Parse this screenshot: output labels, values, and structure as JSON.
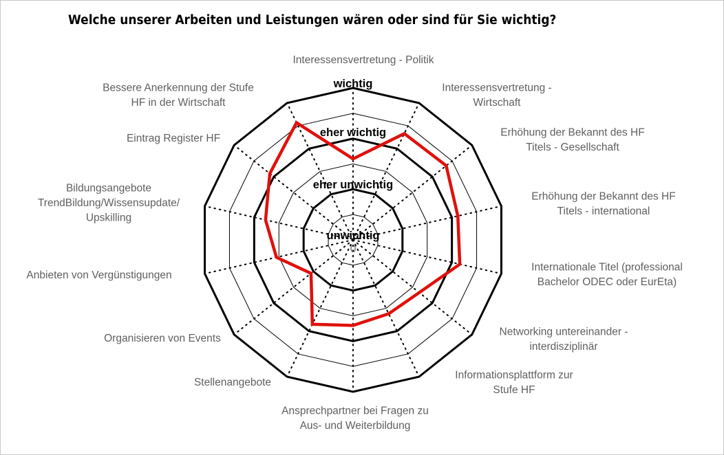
{
  "chart_data": {
    "type": "radar",
    "title": "Welche unserer Arbeiten und Leistungen wären oder sind für Sie wichtig?",
    "categories": [
      [
        "Interessensvertretung - Politik"
      ],
      [
        "Interessensvertretung -",
        "Wirtschaft"
      ],
      [
        "Erhöhung der Bekannt des HF",
        "Titels - Gesellschaft"
      ],
      [
        "Erhöhung der Bekannt des HF",
        "Titels - international"
      ],
      [
        "Internationale Titel (professional",
        "Bachelor ODEC oder EurEta)"
      ],
      [
        "Networking untereinander -",
        "interdisziplinär"
      ],
      [
        "Informationsplattform zur",
        "Stufe HF"
      ],
      [
        "Ansprechpartner bei Fragen zu",
        "Aus- und Weiterbildung"
      ],
      [
        "Stellenangebote"
      ],
      [
        "Organisieren von Events"
      ],
      [
        "Anbieten von Vergünstigungen"
      ],
      [
        "Bildungsangebote",
        "TrendBildung/Wissensupdate/",
        "Upskilling"
      ],
      [
        "Eintrag Register HF"
      ],
      [
        "Bessere Anerkennung der Stufe",
        "HF in der Wirtschaft"
      ]
    ],
    "values": [
      2.6,
      3.33,
      3.35,
      3.12,
      3.16,
      2.67,
      2.62,
      2.69,
      2.85,
      2.06,
      2.55,
      2.77,
      3.1,
      3.57
    ],
    "range": [
      1,
      4
    ],
    "gridlines": [
      1.5,
      2,
      2.5,
      3,
      3.5,
      4
    ],
    "tick_labels": [
      {
        "value": 1,
        "label": "unwichtig"
      },
      {
        "value": 2,
        "label": "eher unwichtig"
      },
      {
        "value": 3,
        "label": "eher wichtig"
      },
      {
        "value": 4,
        "label": "wichtig"
      }
    ],
    "center_label": "0",
    "series_color": "#e0100c",
    "grid_color": "#000000",
    "category_label_color": "#5f5f5f"
  }
}
